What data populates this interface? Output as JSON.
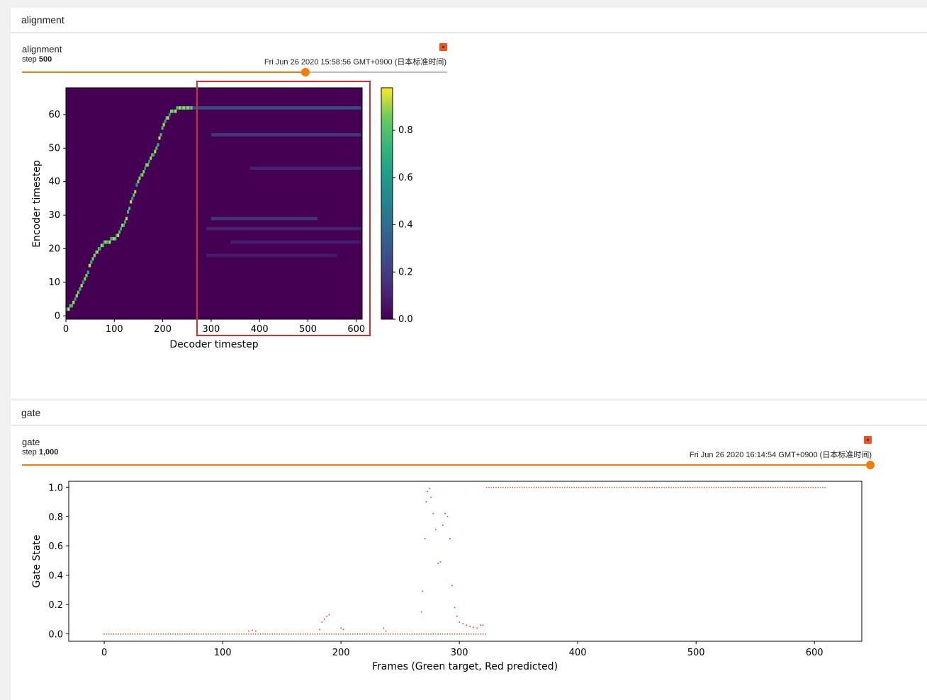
{
  "alignment_section": {
    "header": "alignment",
    "run_title": "alignment",
    "step_label": "step",
    "step_value": "500",
    "timestamp": "Fri Jun 26 2020 15:58:56 GMT+0900 (日本标准时间)",
    "slider_fraction": 0.667,
    "fit_icon": "fit-to-domain-icon"
  },
  "gate_section": {
    "header": "gate",
    "run_title": "gate",
    "step_label": "step",
    "step_value": "1,000",
    "timestamp": "Fri Jun 26 2020 16:14:54 GMT+0900 (日本标准时间)",
    "slider_fraction": 1.0,
    "fit_icon": "fit-to-domain-icon"
  },
  "chart_data": [
    {
      "type": "heatmap",
      "xlabel": "Decoder timestep",
      "ylabel": "Encoder timestep",
      "xlim": [
        0,
        612
      ],
      "ylim": [
        -1,
        68
      ],
      "xticks": [
        0,
        100,
        200,
        300,
        400,
        500,
        600
      ],
      "yticks": [
        0,
        10,
        20,
        30,
        40,
        50,
        60
      ],
      "colorbar_ticks": [
        0.0,
        0.2,
        0.4,
        0.6,
        0.8
      ],
      "colorbar_range": [
        0,
        0.98
      ],
      "colormap": "viridis",
      "alignment_path": [
        [
          0,
          2
        ],
        [
          10,
          3
        ],
        [
          20,
          6
        ],
        [
          30,
          9
        ],
        [
          40,
          12
        ],
        [
          50,
          16
        ],
        [
          60,
          19
        ],
        [
          80,
          22
        ],
        [
          100,
          23
        ],
        [
          120,
          28
        ],
        [
          135,
          35
        ],
        [
          150,
          41
        ],
        [
          170,
          46
        ],
        [
          185,
          50
        ],
        [
          200,
          57
        ],
        [
          215,
          61
        ],
        [
          240,
          62
        ],
        [
          260,
          62
        ]
      ],
      "after_path_bands": [
        {
          "encoder": 62,
          "from": 260,
          "to": 610,
          "intensity": 0.35
        },
        {
          "encoder": 54,
          "from": 300,
          "to": 610,
          "intensity": 0.25
        },
        {
          "encoder": 44,
          "from": 380,
          "to": 610,
          "intensity": 0.15
        },
        {
          "encoder": 29,
          "from": 300,
          "to": 520,
          "intensity": 0.25
        },
        {
          "encoder": 26,
          "from": 290,
          "to": 610,
          "intensity": 0.15
        },
        {
          "encoder": 22,
          "from": 340,
          "to": 610,
          "intensity": 0.12
        },
        {
          "encoder": 18,
          "from": 290,
          "to": 560,
          "intensity": 0.12
        }
      ]
    },
    {
      "type": "scatter",
      "xlabel": "Frames (Green target, Red predicted)",
      "ylabel": "Gate State",
      "xlim": [
        -30,
        640
      ],
      "ylim": [
        -0.05,
        1.04
      ],
      "xticks": [
        0,
        100,
        200,
        300,
        400,
        500,
        600
      ],
      "yticks": [
        0.0,
        0.2,
        0.4,
        0.6,
        0.8,
        1.0
      ],
      "series": [
        {
          "name": "Green target",
          "color": "#2ca02c",
          "segments": [
            {
              "x_from": 0,
              "x_to": 322,
              "y": 0
            },
            {
              "x_from": 323,
              "x_to": 610,
              "y": 1
            }
          ]
        },
        {
          "name": "Red predicted",
          "color": "#ff4444",
          "points": [
            [
              122,
              0.02
            ],
            [
              125,
              0.025
            ],
            [
              128,
              0.02
            ],
            [
              182,
              0.03
            ],
            [
              184,
              0.08
            ],
            [
              186,
              0.1
            ],
            [
              188,
              0.12
            ],
            [
              190,
              0.13
            ],
            [
              200,
              0.04
            ],
            [
              202,
              0.03
            ],
            [
              236,
              0.04
            ],
            [
              238,
              0.02
            ],
            [
              268,
              0.15
            ],
            [
              269,
              0.29
            ],
            [
              271,
              0.65
            ],
            [
              272,
              0.9
            ],
            [
              273,
              0.97
            ],
            [
              275,
              0.99
            ],
            [
              276,
              0.93
            ],
            [
              278,
              0.82
            ],
            [
              280,
              0.71
            ],
            [
              282,
              0.48
            ],
            [
              284,
              0.49
            ],
            [
              286,
              0.74
            ],
            [
              288,
              0.82
            ],
            [
              290,
              0.8
            ],
            [
              292,
              0.65
            ],
            [
              294,
              0.33
            ],
            [
              296,
              0.18
            ],
            [
              298,
              0.12
            ],
            [
              300,
              0.08
            ],
            [
              303,
              0.07
            ],
            [
              306,
              0.06
            ],
            [
              309,
              0.05
            ],
            [
              312,
              0.045
            ],
            [
              315,
              0.04
            ],
            [
              318,
              0.06
            ],
            [
              320,
              0.06
            ]
          ],
          "baseline_segments": [
            {
              "x_from": 0,
              "x_to": 322,
              "y": 0
            },
            {
              "x_from": 323,
              "x_to": 610,
              "y": 1
            }
          ]
        }
      ]
    }
  ]
}
